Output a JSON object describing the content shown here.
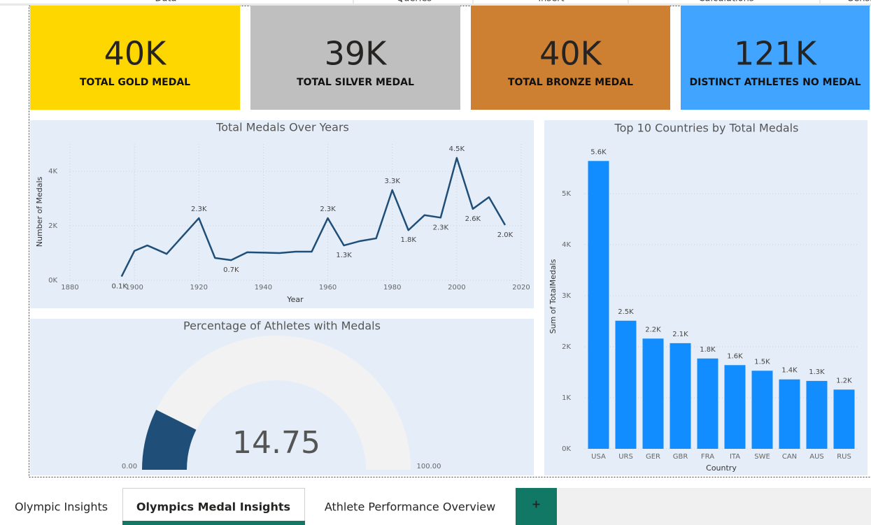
{
  "ribbon": [
    "Data",
    "Queries",
    "Insert",
    "Calculations",
    "Sensitivity"
  ],
  "cards": [
    {
      "value": "40K",
      "label": "TOTAL GOLD MEDAL",
      "color": "#FFD700"
    },
    {
      "value": "39K",
      "label": "TOTAL SILVER MEDAL",
      "color": "#BFBFBF"
    },
    {
      "value": "40K",
      "label": "TOTAL BRONZE MEDAL",
      "color": "#CD7F32"
    },
    {
      "value": "121K",
      "label": "DISTINCT ATHLETES NO MEDAL",
      "color": "#41A5FF"
    }
  ],
  "chart_data": [
    {
      "type": "line",
      "title": "Total Medals Over Years",
      "x_label": "Year",
      "y_label": "Number of Medals",
      "color": "#1F4E79",
      "x": [
        1896,
        1900,
        1904,
        1910,
        1920,
        1925,
        1930,
        1935,
        1945,
        1950,
        1955,
        1960,
        1965,
        1970,
        1975,
        1980,
        1985,
        1990,
        1995,
        2000,
        2005,
        2010,
        2015
      ],
      "values": [
        140,
        1080,
        1280,
        970,
        2280,
        820,
        740,
        1030,
        1000,
        1050,
        1050,
        2280,
        1280,
        1440,
        1540,
        3310,
        1840,
        2390,
        2300,
        4490,
        2620,
        3050,
        2030
      ],
      "value_labels": [
        "0.1K",
        null,
        null,
        null,
        "2.3K",
        null,
        "0.7K",
        null,
        null,
        null,
        null,
        "2.3K",
        "1.3K",
        null,
        null,
        "3.3K",
        "1.8K",
        null,
        "2.3K",
        "4.5K",
        "2.6K",
        null,
        "2.0K"
      ],
      "xlim": [
        1880,
        2020
      ],
      "xticks": [
        1880,
        1900,
        1920,
        1940,
        1960,
        1980,
        2000,
        2020
      ],
      "ylim": [
        0,
        5000
      ],
      "yticks": [
        {
          "value": 0,
          "label": "0K"
        },
        {
          "value": 2000,
          "label": "2K"
        },
        {
          "value": 4000,
          "label": "4K"
        }
      ],
      "grid": true
    },
    {
      "type": "bar",
      "title": "Top 10 Countries by Total Medals",
      "x_label": "Country",
      "y_label": "Sum of TotalMedals",
      "color": "#118DFF",
      "categories": [
        "USA",
        "URS",
        "GER",
        "GBR",
        "FRA",
        "ITA",
        "SWE",
        "CAN",
        "AUS",
        "RUS"
      ],
      "values": [
        5640,
        2510,
        2160,
        2070,
        1770,
        1640,
        1530,
        1360,
        1330,
        1160
      ],
      "value_labels": [
        "5.6K",
        "2.5K",
        "2.2K",
        "2.1K",
        "1.8K",
        "1.6K",
        "1.5K",
        "1.4K",
        "1.3K",
        "1.2K"
      ],
      "ylim": [
        0,
        6000
      ],
      "yticks": [
        {
          "value": 0,
          "label": "0K"
        },
        {
          "value": 1000,
          "label": "1K"
        },
        {
          "value": 2000,
          "label": "2K"
        },
        {
          "value": 3000,
          "label": "3K"
        },
        {
          "value": 4000,
          "label": "4K"
        },
        {
          "value": 5000,
          "label": "5K"
        }
      ],
      "grid": true
    },
    {
      "type": "gauge",
      "title": "Percentage of Athletes with Medals",
      "value": 14.75,
      "min": {
        "value": 0,
        "label": "0.00"
      },
      "max": {
        "value": 100,
        "label": "100.00"
      },
      "color": "#1F4E79",
      "track_color": "#F2F2F2"
    }
  ],
  "tabs": [
    "Olympic Insights",
    "Olympics Medal Insights",
    "Athlete Performance Overview",
    "+"
  ],
  "active_tab": 1
}
